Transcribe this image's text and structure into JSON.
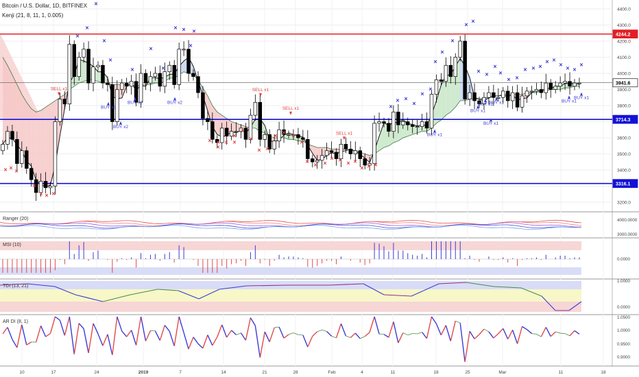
{
  "header": {
    "symbol": "Bitcoin / U.S. Dollar, 1D, BITFINEX",
    "indicator": "Kenji (21, 8, 11, 1, 0.005)"
  },
  "colors": {
    "up_candle": "#ffffff",
    "down_candle": "#000000",
    "resistance": "#e21f26",
    "support": "#1212d6",
    "cloud_bear": "#f6c8c8",
    "cloud_bull": "#c8e6c8",
    "cloud_blue": "#c5d4f2",
    "signal_x_red": "#e2403f",
    "signal_x_blue": "#3a3ad8",
    "signal_text_red": "#e2403f",
    "signal_text_blue": "#3a3ad8"
  },
  "chart_data": [
    {
      "type": "candlestick",
      "pane": "price",
      "x_ticks": [
        "10",
        "17",
        "24",
        "2019",
        "7",
        "14",
        "21",
        "28",
        "Feb",
        "4",
        "11",
        "18",
        "25",
        "Mar",
        "11",
        "18"
      ],
      "ylim": [
        3100,
        4480
      ],
      "y_ticks": [
        3200,
        3300,
        3400,
        3500,
        3600,
        3700,
        3800,
        3900,
        4000,
        4100,
        4200,
        4300,
        4400
      ],
      "price_labels": [
        {
          "value": "4244.2",
          "kind": "resistance"
        },
        {
          "value": "3941.6",
          "kind": "last"
        },
        {
          "value": "3714.3",
          "kind": "support"
        },
        {
          "value": "3316.1",
          "kind": "support"
        }
      ],
      "levels": {
        "resistance": 4244.2,
        "support_high": 3714.3,
        "support_low": 3316.1,
        "last": 3941.6
      },
      "closes": [
        3560,
        3640,
        3590,
        3440,
        3520,
        3410,
        3340,
        3260,
        3330,
        3290,
        3300,
        3700,
        3840,
        3810,
        4180,
        3980,
        4100,
        4150,
        3940,
        4040,
        4050,
        3940,
        3930,
        3700,
        3900,
        3940,
        3920,
        3950,
        3820,
        4000,
        3940,
        3980,
        4000,
        3920,
        4010,
        4050,
        3930,
        4150,
        4150,
        4000,
        3980,
        3880,
        3720,
        3700,
        3590,
        3570,
        3660,
        3610,
        3640,
        3640,
        3660,
        3590,
        3740,
        3820,
        3590,
        3620,
        3530,
        3580,
        3650,
        3620,
        3620,
        3620,
        3600,
        3590,
        3470,
        3450,
        3460,
        3490,
        3520,
        3510,
        3470,
        3560,
        3530,
        3500,
        3520,
        3470,
        3430,
        3440,
        3690,
        3700,
        3690,
        3640,
        3760,
        3680,
        3700,
        3680,
        3670,
        3670,
        3700,
        3660,
        3870,
        3960,
        3950,
        4050,
        3980,
        4100,
        4200,
        3840,
        3880,
        3830,
        3810,
        3850,
        3880,
        3850,
        3850,
        3890,
        3830,
        3880,
        3790,
        3860,
        3890,
        3890,
        3900,
        3880,
        3940,
        3900,
        3920,
        3940,
        3950,
        3920,
        3940,
        3940
      ],
      "ma_fast": [
        4100,
        4050,
        3990,
        3930,
        3870,
        3820,
        3780,
        3760,
        3770,
        3790,
        3810,
        3830,
        3850,
        3870,
        3900,
        3920,
        3940,
        3950,
        3960,
        3960,
        3950,
        3940,
        3940,
        3930,
        3930,
        3930,
        3930,
        3930,
        3920,
        3930,
        3930,
        3930,
        3940,
        3940,
        3950,
        3970,
        3970,
        3990,
        4010,
        4000,
        3990,
        3960,
        3910,
        3860,
        3800,
        3760,
        3740,
        3720,
        3700,
        3690,
        3680,
        3670,
        3660,
        3660,
        3640,
        3630,
        3610,
        3600,
        3600,
        3600,
        3590,
        3590,
        3580,
        3580,
        3560,
        3550,
        3540,
        3540,
        3540,
        3530,
        3530,
        3530,
        3530,
        3520,
        3520,
        3510,
        3500,
        3490,
        3500,
        3520,
        3540,
        3550,
        3570,
        3580,
        3600,
        3610,
        3620,
        3630,
        3640,
        3640,
        3660,
        3690,
        3710,
        3740,
        3760,
        3790,
        3830,
        3830,
        3840,
        3840,
        3840,
        3850,
        3850,
        3860,
        3860,
        3870,
        3870,
        3870,
        3870,
        3870,
        3880,
        3880,
        3880,
        3890,
        3890,
        3900,
        3900,
        3900,
        3910,
        3910,
        3920,
        3920
      ],
      "signals": [
        {
          "text": "SELL x1",
          "value": 3890,
          "index": 11,
          "kind": "sell"
        },
        {
          "text": "BUY x2",
          "value": 3780,
          "index": 18,
          "kind": "buy"
        },
        {
          "text": "BUY x2",
          "value": 3650,
          "index": 23,
          "kind": "buy"
        },
        {
          "text": "BUY x2",
          "value": 3760,
          "index": 25,
          "kind": "buy"
        },
        {
          "text": "BUY x2",
          "value": 3810,
          "index": 36,
          "kind": "buy"
        },
        {
          "text": "SELL x1",
          "value": 3890,
          "index": 56,
          "kind": "sell"
        },
        {
          "text": "SELL x1",
          "value": 3780,
          "index": 64,
          "kind": "sell"
        },
        {
          "text": "SELL x1",
          "value": 3620,
          "index": 75,
          "kind": "sell"
        },
        {
          "text": "BUY x1",
          "value": 3610,
          "index": 93,
          "kind": "buy"
        },
        {
          "text": "BUY x1",
          "value": 3800,
          "index": 102,
          "kind": "buy"
        },
        {
          "text": "BUY x1",
          "value": 3760,
          "index": 104,
          "kind": "buy"
        },
        {
          "text": "BUY x1",
          "value": 3810,
          "index": 107,
          "kind": "buy"
        },
        {
          "text": "BUY x1",
          "value": 3680,
          "index": 105,
          "kind": "buy"
        },
        {
          "text": "BUY x1",
          "value": 3840,
          "index": 122,
          "kind": "buy"
        },
        {
          "text": "BUY x1",
          "value": 3820,
          "index": 119,
          "kind": "buy"
        }
      ]
    },
    {
      "type": "line",
      "pane": "ranger",
      "title": "Ranger (20)",
      "y_ticks": [
        "4000.0000",
        "3000.0000"
      ]
    },
    {
      "type": "bar",
      "pane": "msi",
      "title": "MSI (10)",
      "y_ticks": [
        "0.0000"
      ]
    },
    {
      "type": "line",
      "pane": "tdi",
      "title": "TDI (13, 21)",
      "y_ticks": [
        "1.0000",
        "0.0000"
      ]
    },
    {
      "type": "line",
      "pane": "ardi",
      "title": "AR DI (8, 1)",
      "y_ticks": [
        "1.0500",
        "1.0000",
        "0.9500",
        "0.9000"
      ]
    }
  ]
}
